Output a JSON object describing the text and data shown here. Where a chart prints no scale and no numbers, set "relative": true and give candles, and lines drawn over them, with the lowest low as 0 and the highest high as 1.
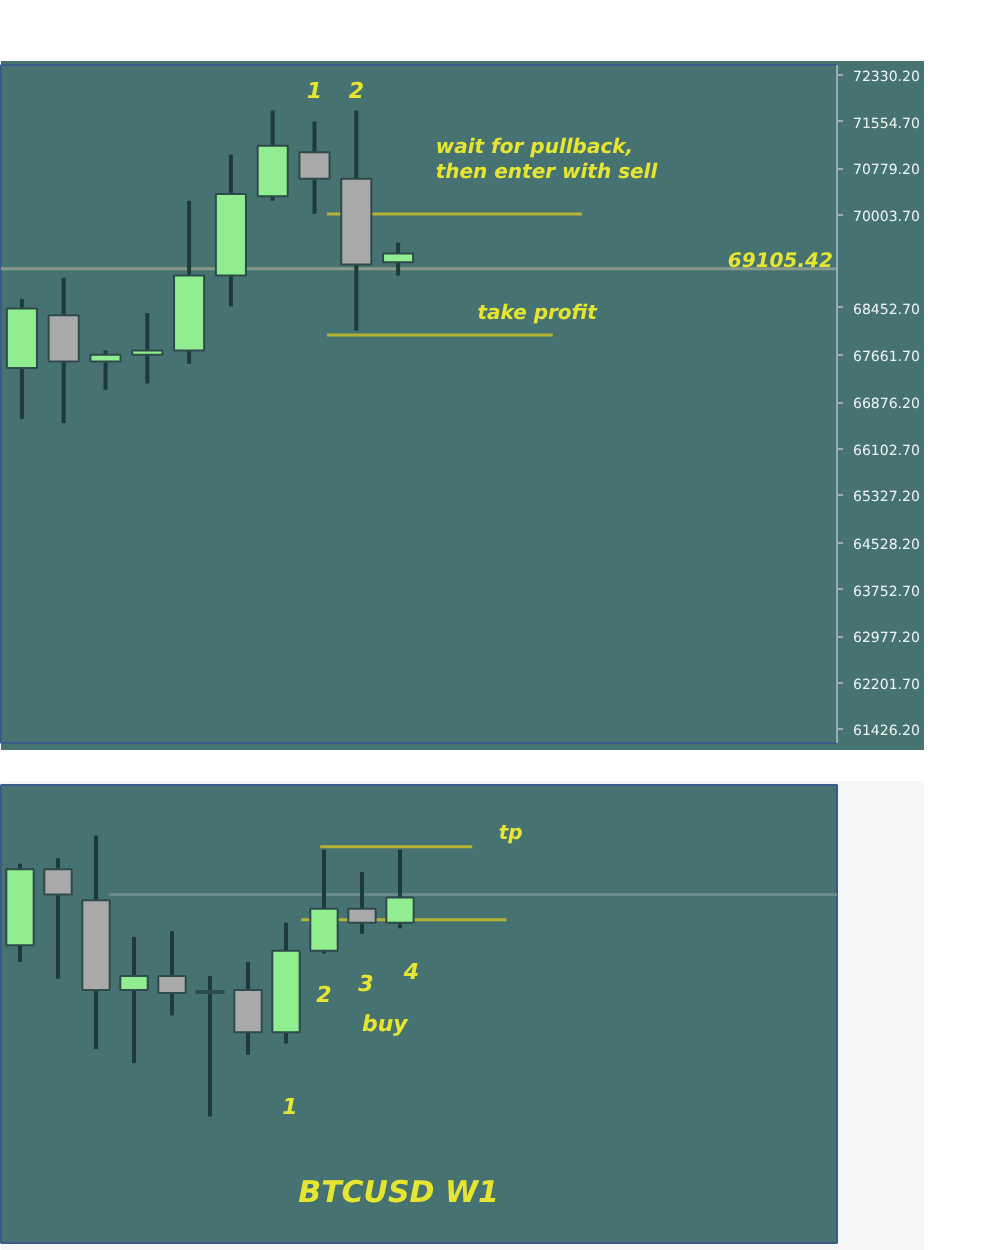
{
  "chart_data": [
    {
      "type": "candlestick",
      "categories": [
        null,
        null,
        null,
        null,
        null,
        null,
        null,
        null,
        null,
        null,
        null,
        null,
        null,
        null,
        null,
        null,
        null,
        null,
        null,
        null
      ],
      "ohlc": [
        [
          67449,
          68600,
          66600,
          68440
        ],
        [
          68330,
          68954,
          66531,
          67559
        ],
        [
          67559,
          67742,
          67082,
          67669
        ],
        [
          67669,
          68366,
          67192,
          67742
        ],
        [
          67742,
          70238,
          67522,
          68990
        ],
        [
          68990,
          71009,
          68477,
          70348
        ],
        [
          70312,
          71743,
          70238,
          71156
        ],
        [
          71046,
          71559,
          70018,
          70605
        ],
        [
          70605,
          71743,
          68073,
          69174
        ],
        [
          69211,
          69541,
          68990,
          69357
        ],
        null,
        null,
        null,
        null,
        null,
        null,
        null,
        null,
        null,
        null
      ],
      "colors": [
        "#90ee90",
        "#a9a9a9",
        "#90ee90",
        "#90ee90",
        "#90ee90",
        "#90ee90",
        "#90ee90",
        "#a9a9a9",
        "#a9a9a9",
        "#90ee90",
        null,
        null,
        null,
        null,
        null,
        null,
        null,
        null,
        null,
        null
      ],
      "ylim": [
        61200,
        72500
      ],
      "yticks": [
        {
          "value": 72330.2,
          "label": "72330.20"
        },
        {
          "value": 71554.7,
          "label": "71554.70"
        },
        {
          "value": 70779.2,
          "label": "70779.20"
        },
        {
          "value": 70003.7,
          "label": "70003.70"
        },
        {
          "value": 68452.7,
          "label": "68452.70"
        },
        {
          "value": 67661.7,
          "label": "67661.70"
        },
        {
          "value": 66876.2,
          "label": "66876.20"
        },
        {
          "value": 66102.7,
          "label": "66102.70"
        },
        {
          "value": 65327.2,
          "label": "65327.20"
        },
        {
          "value": 64528.2,
          "label": "64528.20"
        },
        {
          "value": 63752.7,
          "label": "63752.70"
        },
        {
          "value": 62977.2,
          "label": "62977.20"
        },
        {
          "value": 62201.7,
          "label": "62201.70"
        },
        {
          "value": 61426.2,
          "label": "61426.20"
        }
      ],
      "ref_lines": [
        {
          "axis": "y",
          "value": 69105.42,
          "label": "69105.42",
          "color": "#8a9a8a"
        },
        {
          "axis": "y",
          "value": 70018,
          "label": "wait for pullback,\nthen enter with sell",
          "color": "#b4b432"
        },
        {
          "axis": "y",
          "value": 67999,
          "label": "take profit",
          "color": "#b4b432"
        }
      ],
      "annotations": [
        "1",
        "2"
      ]
    },
    {
      "type": "candlestick",
      "relative": true,
      "categories": [
        null,
        null,
        null,
        null,
        null,
        null,
        null,
        null,
        null,
        null,
        null,
        null,
        null,
        null,
        null,
        null,
        null,
        null,
        null,
        null,
        null,
        null
      ],
      "ohlc": [
        [
          0.61,
          0.9,
          0.55,
          0.88
        ],
        [
          0.88,
          0.92,
          0.49,
          0.79
        ],
        [
          0.77,
          1.0,
          0.24,
          0.45
        ],
        [
          0.45,
          0.64,
          0.19,
          0.5
        ],
        [
          0.5,
          0.66,
          0.36,
          0.44
        ],
        [
          0.44,
          0.5,
          0.0,
          0.44
        ],
        [
          0.45,
          0.55,
          0.22,
          0.3
        ],
        [
          0.3,
          0.69,
          0.26,
          0.59
        ],
        [
          0.59,
          0.95,
          0.58,
          0.74
        ],
        [
          0.74,
          0.87,
          0.65,
          0.69
        ],
        [
          0.69,
          0.95,
          0.67,
          0.78
        ],
        null,
        null,
        null,
        null,
        null,
        null,
        null,
        null,
        null,
        null,
        null
      ],
      "colors": [
        "#90ee90",
        "#a9a9a9",
        "#a9a9a9",
        "#90ee90",
        "#a9a9a9",
        "#2e4e4e",
        "#a9a9a9",
        "#90ee90",
        "#90ee90",
        "#a9a9a9",
        "#90ee90",
        null,
        null,
        null,
        null,
        null,
        null,
        null,
        null,
        null,
        null,
        null
      ],
      "ref_lines": [
        {
          "axis": "y",
          "value": 0.96,
          "label": "tp",
          "color": "#b4b432"
        },
        {
          "axis": "y",
          "value": 0.7,
          "label": null,
          "color": "#b4b432"
        },
        {
          "axis": "y",
          "value": 0.79,
          "label": null,
          "color": "#6a8a8a"
        }
      ],
      "annotations": [
        "1",
        "2",
        "3",
        "4",
        "buy",
        "BTCUSD  W1"
      ]
    }
  ]
}
